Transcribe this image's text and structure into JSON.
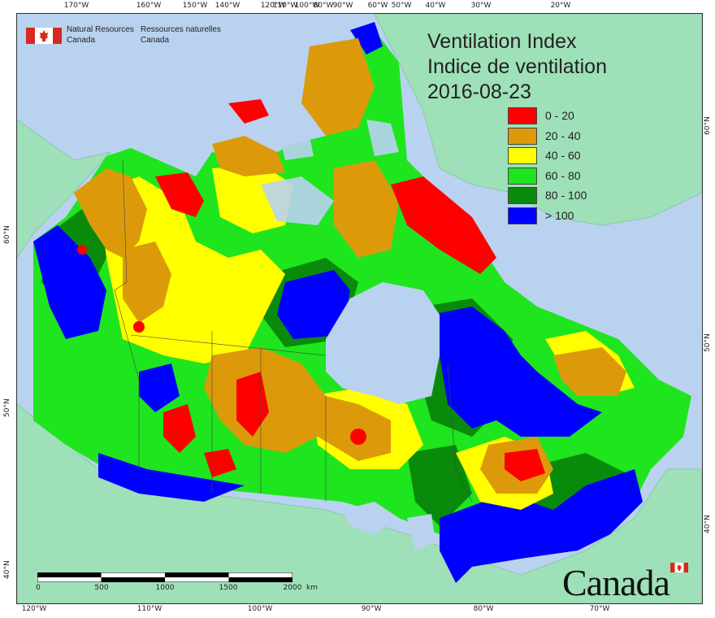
{
  "agency": {
    "en_line1": "Natural Resources",
    "en_line2": "Canada",
    "fr_line1": "Ressources naturelles",
    "fr_line2": "Canada"
  },
  "title": {
    "en": "Ventilation Index",
    "fr": "Indice de ventilation",
    "date": "2016-08-23"
  },
  "legend": [
    {
      "label": "0 - 20",
      "color": "#ff0000"
    },
    {
      "label": "20 - 40",
      "color": "#dc9a0a"
    },
    {
      "label": "40 - 60",
      "color": "#ffff00"
    },
    {
      "label": "60 - 80",
      "color": "#1ee51e"
    },
    {
      "label": "80 - 100",
      "color": "#0a8a0a"
    },
    {
      "label": "> 100",
      "color": "#0000ff"
    }
  ],
  "top_ticks": [
    "170°W",
    "160°W",
    "150°W",
    "140°W",
    "120°W",
    "110°W",
    "100°W",
    "90°W",
    "80°W",
    "60°W",
    "50°W",
    "40°W",
    "30°W",
    "20°W"
  ],
  "bottom_ticks": [
    "120°W",
    "110°W",
    "100°W",
    "90°W",
    "80°W",
    "70°W"
  ],
  "left_ticks": [
    "60°N",
    "50°N",
    "40°N"
  ],
  "right_ticks": [
    "60°N",
    "50°N",
    "40°N"
  ],
  "scale": {
    "labels": [
      "0",
      "500",
      "1000",
      "1500",
      "2000"
    ],
    "unit": "km"
  },
  "wordmark": "Canada",
  "colors": {
    "ocean": "#b9d2ef",
    "land_outside": "#9ee0b8",
    "greenland": "#9ee0b8"
  }
}
